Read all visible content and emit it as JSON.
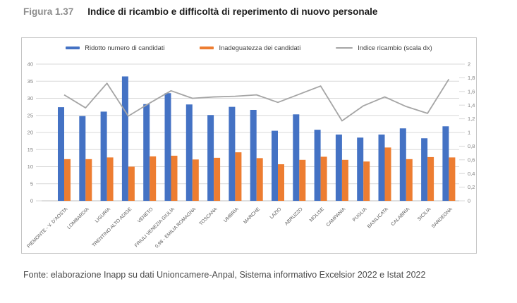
{
  "header": {
    "figure_label": "Figura 1.37",
    "title": "Indice di ricambio e difficoltà di reperimento di nuovo personale"
  },
  "footer": {
    "source": "Fonte: elaborazione Inapp su dati Unioncamere-Anpal, Sistema informativo Excelsior 2022 e Istat 2022"
  },
  "colors": {
    "bar_blue": "#4472C4",
    "bar_orange": "#ED7D31",
    "line_gray": "#A5A5A5",
    "gridline": "#d9d9d9",
    "axis_line": "#bfbfbf",
    "axis_text": "#7f7f7f",
    "category_text": "#595959"
  },
  "chart_data": {
    "type": "bar",
    "subtype": "clustered bars with secondary-axis line",
    "grid": true,
    "legend_position": "top",
    "categories": [
      "PIEMONTE - V. D'AOSTA",
      "LOMBARDIA",
      "LIGURIA",
      "TRENTINO ALTO ADIGE",
      "VENETO",
      "FRIULI VENEZIA GIULIA",
      "0,98 - EMILIA ROMAGNA",
      "TOSCANA",
      "UMBRIA",
      "MARCHE",
      "LAZIO",
      "ABRUZZO",
      "MOLISE",
      "CAMPANIA",
      "PUGLIA",
      "BASILICATA",
      "CALABRIA",
      "SICILIA",
      "SARDEGNA"
    ],
    "series": [
      {
        "name": "Ridotto numero di candidati",
        "type": "bar",
        "axis": "left",
        "color": "#4472C4",
        "values": [
          27.4,
          24.8,
          26.1,
          36.4,
          28.3,
          31.5,
          28.2,
          25.1,
          27.5,
          26.6,
          20.5,
          25.3,
          20.8,
          19.4,
          18.5,
          19.4,
          21.2,
          18.3,
          21.8
        ]
      },
      {
        "name": "Inadeguatezza dei candidati",
        "type": "bar",
        "axis": "left",
        "color": "#ED7D31",
        "values": [
          12.2,
          12.2,
          12.7,
          10.0,
          13.0,
          13.2,
          12.1,
          12.6,
          14.2,
          12.5,
          10.7,
          12.0,
          12.9,
          12.0,
          11.5,
          15.6,
          12.2,
          12.8,
          12.7
        ]
      },
      {
        "name": "Indice ricambio (scala dx)",
        "type": "line",
        "axis": "right",
        "color": "#A5A5A5",
        "values": [
          1.55,
          1.36,
          1.72,
          1.24,
          1.43,
          1.61,
          1.5,
          1.52,
          1.53,
          1.55,
          1.44,
          1.56,
          1.68,
          1.17,
          1.39,
          1.52,
          1.38,
          1.28,
          1.78
        ]
      }
    ],
    "left_axis": {
      "min": 0,
      "max": 40,
      "step": 5,
      "ticks": [
        "0",
        "5",
        "10",
        "15",
        "20",
        "25",
        "30",
        "35",
        "40"
      ]
    },
    "right_axis": {
      "min": 0,
      "max": 2,
      "step": 0.2,
      "ticks": [
        "0",
        "0,2",
        "0,4",
        "0,6",
        "0,8",
        "1",
        "1,2",
        "1,4",
        "1,6",
        "1,8",
        "2"
      ]
    }
  }
}
